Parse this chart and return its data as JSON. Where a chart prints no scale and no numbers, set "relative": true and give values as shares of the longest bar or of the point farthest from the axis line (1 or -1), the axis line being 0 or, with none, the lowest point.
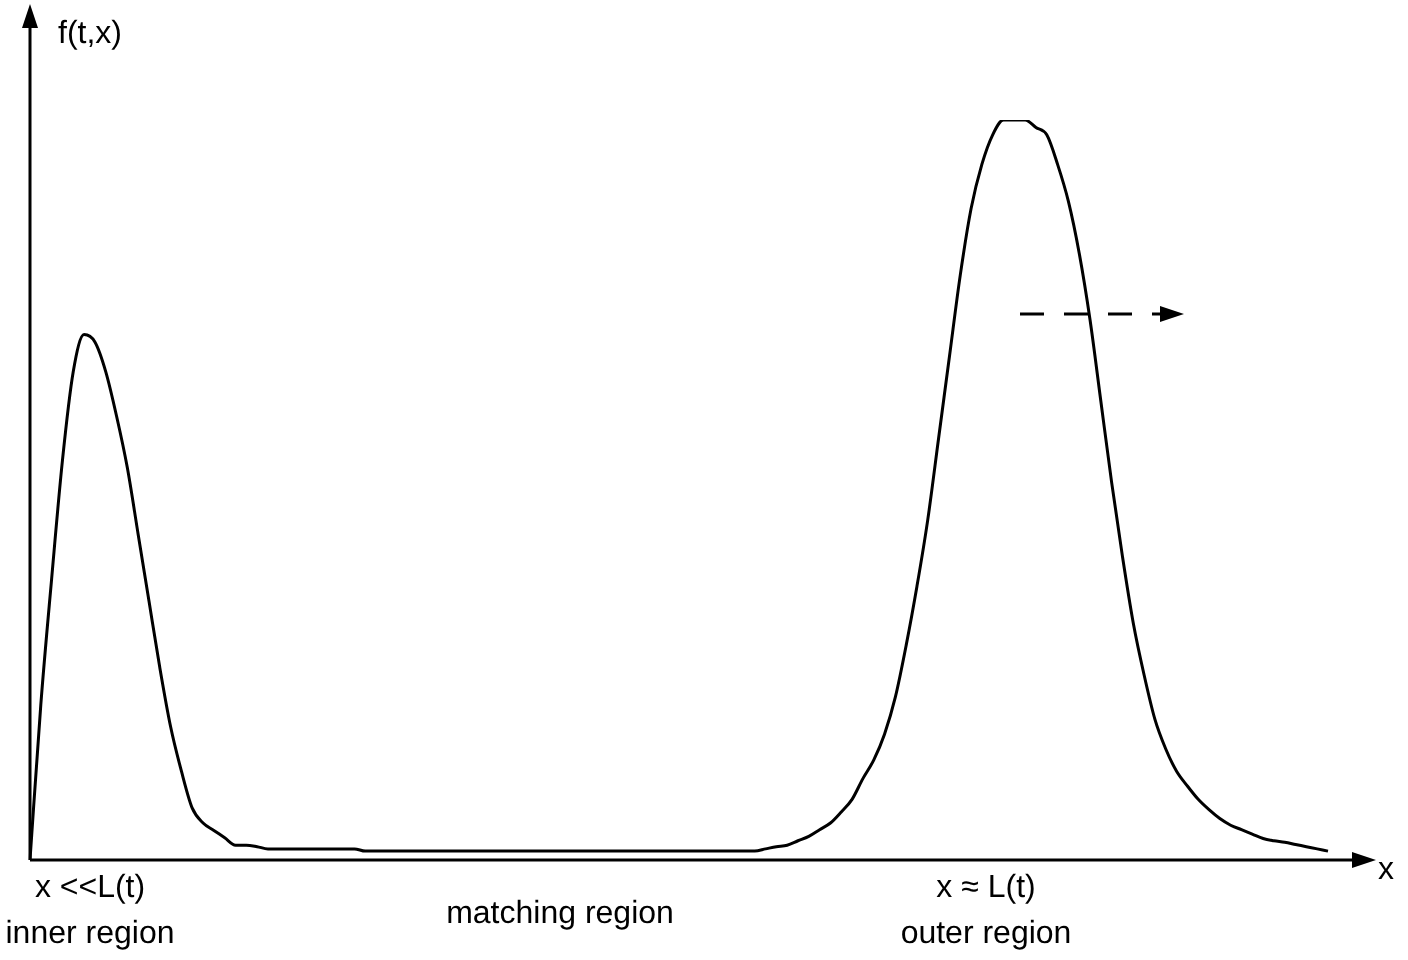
{
  "chart_data": {
    "type": "line",
    "relative": true,
    "color": "#000000",
    "marker": "none",
    "xlabel": "x",
    "ylabel": "f(t,x)",
    "annotations": [
      "x <<L(t)",
      "inner region",
      "matching region",
      "x ≈ L(t)",
      "outer region"
    ],
    "categories": [
      null,
      null,
      null,
      null,
      null,
      null,
      null,
      null,
      null,
      null,
      null,
      null,
      null,
      null,
      null,
      null,
      null,
      null,
      null,
      null,
      null,
      null,
      null,
      null,
      null,
      null,
      null,
      null,
      null,
      null,
      null,
      null,
      null,
      null,
      null,
      null,
      null,
      null,
      null,
      null,
      null,
      null,
      null,
      null,
      null,
      null,
      null,
      null,
      null,
      null,
      null,
      null,
      null,
      null,
      null,
      null,
      null,
      null,
      null,
      null,
      null,
      null,
      null,
      null,
      null,
      null,
      null,
      null,
      null,
      null,
      null,
      null,
      null,
      null,
      null,
      null,
      null,
      null,
      null,
      null,
      null,
      null,
      null,
      null,
      null,
      null,
      null,
      null,
      null,
      null,
      null,
      null,
      null,
      null,
      null,
      null,
      null,
      null,
      null,
      null,
      null,
      null,
      null,
      null,
      null,
      null,
      null,
      null,
      null,
      null,
      null,
      null,
      null,
      null,
      null,
      null,
      null,
      null,
      null,
      null,
      null
    ],
    "values": [
      0,
      0.21,
      0.38,
      0.54,
      0.66,
      0.71,
      0.7,
      0.66,
      0.6,
      0.53,
      0.44,
      0.35,
      0.26,
      0.18,
      0.12,
      0.07,
      0.05,
      0.04,
      0.03,
      0.02,
      0.02,
      0.018,
      0.015,
      0.015,
      0.015,
      0.015,
      0.015,
      0.015,
      0.015,
      0.015,
      0.015,
      0.012,
      0.012,
      0.012,
      0.012,
      0.012,
      0.012,
      0.012,
      0.012,
      0.012,
      0.012,
      0.012,
      0.012,
      0.012,
      0.012,
      0.012,
      0.012,
      0.012,
      0.012,
      0.012,
      0.012,
      0.012,
      0.012,
      0.012,
      0.012,
      0.012,
      0.012,
      0.012,
      0.012,
      0.012,
      0.012,
      0.012,
      0.012,
      0.012,
      0.012,
      0.012,
      0.012,
      0.012,
      0.015,
      0.018,
      0.02,
      0.026,
      0.032,
      0.041,
      0.05,
      0.065,
      0.082,
      0.11,
      0.135,
      0.17,
      0.22,
      0.29,
      0.37,
      0.46,
      0.57,
      0.68,
      0.79,
      0.88,
      0.94,
      0.98,
      1,
      1,
      1,
      0.99,
      0.98,
      0.94,
      0.89,
      0.82,
      0.73,
      0.62,
      0.51,
      0.41,
      0.32,
      0.25,
      0.19,
      0.15,
      0.12,
      0.1,
      0.082,
      0.068,
      0.056,
      0.047,
      0.041,
      0.035,
      0.029,
      0.026,
      0.024,
      0.021,
      0.018,
      0.015,
      0.012
    ]
  }
}
